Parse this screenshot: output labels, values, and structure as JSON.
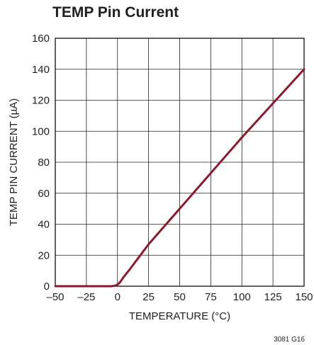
{
  "chart_data": {
    "type": "line",
    "title": "TEMP Pin Current",
    "xlabel": "TEMPERATURE (°C)",
    "ylabel": "TEMP PIN CURRENT (µA)",
    "xlim": [
      -50,
      150
    ],
    "ylim": [
      0,
      160
    ],
    "x_ticks": [
      -50,
      -25,
      0,
      25,
      50,
      75,
      100,
      125,
      150
    ],
    "y_ticks": [
      0,
      20,
      40,
      60,
      80,
      100,
      120,
      140,
      160
    ],
    "x_tick_labels": [
      "–50",
      "–25",
      "0",
      "25",
      "50",
      "75",
      "100",
      "125",
      "150"
    ],
    "y_tick_labels": [
      "0",
      "20",
      "40",
      "60",
      "80",
      "100",
      "120",
      "140",
      "160"
    ],
    "grid": true,
    "line_color": "#8b1a2e",
    "series": [
      {
        "x": [
          -50,
          -25,
          -10,
          -5,
          -2,
          0,
          2,
          5,
          10,
          25,
          50,
          75,
          100,
          125,
          150
        ],
        "values": [
          0,
          0,
          0,
          0,
          0.3,
          1,
          2.5,
          6,
          11,
          27,
          50,
          73,
          96,
          118,
          140
        ]
      }
    ]
  },
  "figure_id": "3081 G16"
}
